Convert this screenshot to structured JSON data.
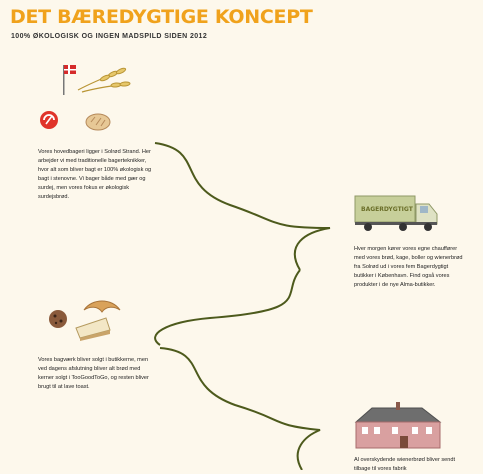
{
  "header": {
    "title": "DET BÆREDYGTIGE KONCEPT",
    "subtitle": "100% ØKOLOGISK OG INGEN MADSPILD SIDEN 2012"
  },
  "sections": [
    {
      "text": "Vores hovedbageri ligger i Solrød Strand. Her arbejder vi med traditionelle bagerteknikker, hvor alt som bliver bagt er 100% økologisk og bagt i stenovne. Vi bager både med gær og surdej, men vores fokus er økologisk surdejsbrød."
    },
    {
      "text": "Hver morgen kører vores egne chauffører med vores brød, kage, boller og wienerbrød fra Solrød ud i vores fem Bagerdygtigt butikker i København. Find også vores produkter i de nye Alma-butikker."
    },
    {
      "text": "Vores bagværk bliver solgt i butikkerne, men ved dagens afslutning bliver alt brød med kerner solgt i TooGoodToGo, og resten bliver brugt til at lave toast."
    },
    {
      "text": "Al overskydende wienerbrød bliver sendt tilbage til vores fabrik"
    }
  ],
  "truck_label": "BAGERDYGTIGT",
  "colors": {
    "accent": "#f0a21c",
    "line": "#4d5a1c",
    "background": "#fdf8ec"
  }
}
